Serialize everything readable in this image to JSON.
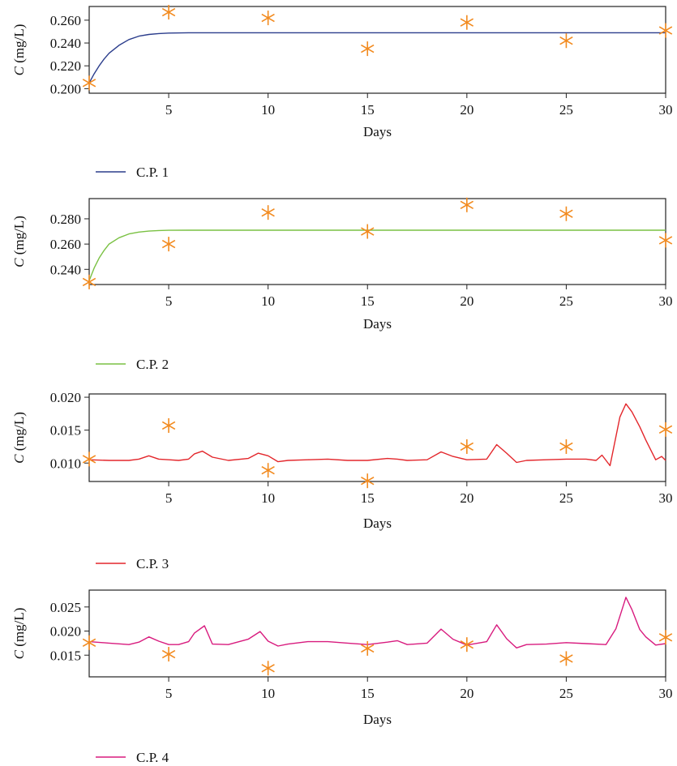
{
  "chart_data": [
    {
      "type": "line",
      "xlabel": "Days",
      "ylabel_italic": "C",
      "ylabel_unit": " (mg/L)",
      "xlim": [
        1,
        30
      ],
      "ylim": [
        0.196,
        0.272
      ],
      "xticks": [
        5,
        10,
        15,
        20,
        25,
        30
      ],
      "xtick_labels": [
        "5",
        "10",
        "15",
        "20",
        "25",
        "30"
      ],
      "yticks": [
        0.2,
        0.22,
        0.24,
        0.26
      ],
      "ytick_labels": [
        "0.200",
        "0.220",
        "0.240",
        "0.260"
      ],
      "grid": false,
      "legend_position": "below",
      "series": [
        {
          "name": "C.P. 1",
          "kind": "line",
          "color": "#2b3d8c",
          "x": [
            1,
            1.25,
            1.5,
            1.75,
            2,
            2.5,
            3,
            3.5,
            4,
            4.5,
            5,
            6,
            8,
            10,
            15,
            20,
            25,
            30
          ],
          "y": [
            0.205,
            0.213,
            0.22,
            0.226,
            0.231,
            0.238,
            0.243,
            0.246,
            0.2475,
            0.2483,
            0.2487,
            0.249,
            0.249,
            0.249,
            0.249,
            0.249,
            0.249,
            0.249
          ]
        },
        {
          "kind": "scatter",
          "marker": "asterisk",
          "color": "#f28a1e",
          "x": [
            1,
            5,
            10,
            15,
            20,
            25,
            30
          ],
          "y": [
            0.205,
            0.267,
            0.262,
            0.235,
            0.258,
            0.242,
            0.251
          ]
        }
      ]
    },
    {
      "type": "line",
      "xlabel": "Days",
      "ylabel_italic": "C",
      "ylabel_unit": " (mg/L)",
      "xlim": [
        1,
        30
      ],
      "ylim": [
        0.228,
        0.296
      ],
      "xticks": [
        5,
        10,
        15,
        20,
        25,
        30
      ],
      "xtick_labels": [
        "5",
        "10",
        "15",
        "20",
        "25",
        "30"
      ],
      "yticks": [
        0.24,
        0.26,
        0.28
      ],
      "ytick_labels": [
        "0.240",
        "0.260",
        "0.280"
      ],
      "grid": false,
      "legend_position": "below",
      "series": [
        {
          "name": "C.P. 2",
          "kind": "line",
          "color": "#7ac143",
          "x": [
            1,
            1.25,
            1.5,
            1.75,
            2,
            2.5,
            3,
            3.5,
            4,
            4.5,
            5,
            6,
            8,
            10,
            15,
            20,
            25,
            30
          ],
          "y": [
            0.231,
            0.241,
            0.249,
            0.255,
            0.26,
            0.265,
            0.268,
            0.2695,
            0.2703,
            0.2707,
            0.2709,
            0.271,
            0.271,
            0.271,
            0.271,
            0.271,
            0.271,
            0.271
          ]
        },
        {
          "kind": "scatter",
          "marker": "asterisk",
          "color": "#f28a1e",
          "x": [
            1,
            5,
            10,
            15,
            20,
            25,
            30
          ],
          "y": [
            0.23,
            0.26,
            0.285,
            0.27,
            0.291,
            0.284,
            0.263
          ]
        }
      ]
    },
    {
      "type": "line",
      "xlabel": "Days",
      "ylabel_italic": "C",
      "ylabel_unit": " (mg/L)",
      "xlim": [
        1,
        30
      ],
      "ylim": [
        0.0072,
        0.0205
      ],
      "xticks": [
        5,
        10,
        15,
        20,
        25,
        30
      ],
      "xtick_labels": [
        "5",
        "10",
        "15",
        "20",
        "25",
        "30"
      ],
      "yticks": [
        0.01,
        0.015,
        0.02
      ],
      "ytick_labels": [
        "0.010",
        "0.015",
        "0.020"
      ],
      "grid": false,
      "legend_position": "below",
      "series": [
        {
          "name": "C.P. 3",
          "kind": "line",
          "color": "#e3262b",
          "x": [
            1,
            2,
            3,
            3.5,
            4,
            4.5,
            5,
            5.5,
            6,
            6.3,
            6.7,
            7.2,
            8,
            9,
            9.5,
            10,
            10.5,
            11,
            12,
            13,
            14,
            15,
            16,
            16.5,
            17,
            18,
            18.7,
            19.3,
            20,
            21,
            21.5,
            22,
            22.5,
            23,
            24,
            25,
            26,
            26.5,
            26.8,
            27.2,
            27.7,
            28,
            28.3,
            28.7,
            29,
            29.5,
            29.8,
            30
          ],
          "y": [
            0.0105,
            0.0104,
            0.0104,
            0.0106,
            0.0111,
            0.0106,
            0.0105,
            0.0104,
            0.0106,
            0.0114,
            0.0118,
            0.0109,
            0.0104,
            0.0107,
            0.0115,
            0.0111,
            0.0102,
            0.0104,
            0.0105,
            0.0106,
            0.0104,
            0.0104,
            0.0107,
            0.0106,
            0.0104,
            0.0105,
            0.0117,
            0.011,
            0.0105,
            0.0106,
            0.0128,
            0.0115,
            0.0101,
            0.0104,
            0.0105,
            0.0106,
            0.0106,
            0.0104,
            0.0112,
            0.0096,
            0.017,
            0.019,
            0.0178,
            0.0155,
            0.0135,
            0.0105,
            0.011,
            0.0104
          ]
        },
        {
          "kind": "scatter",
          "marker": "asterisk",
          "color": "#f28a1e",
          "x": [
            1,
            5,
            10,
            15,
            20,
            25,
            30
          ],
          "y": [
            0.0106,
            0.0157,
            0.0089,
            0.0073,
            0.0125,
            0.0125,
            0.0151
          ]
        }
      ]
    },
    {
      "type": "line",
      "xlabel": "Days",
      "ylabel_italic": "C",
      "ylabel_unit": " (mg/L)",
      "xlim": [
        1,
        30
      ],
      "ylim": [
        0.0105,
        0.0285
      ],
      "xticks": [
        5,
        10,
        15,
        20,
        25,
        30
      ],
      "xtick_labels": [
        "5",
        "10",
        "15",
        "20",
        "25",
        "30"
      ],
      "yticks": [
        0.015,
        0.02,
        0.025
      ],
      "ytick_labels": [
        "0.015",
        "0.020",
        "0.025"
      ],
      "grid": false,
      "legend_position": "below",
      "series": [
        {
          "name": "C.P. 4",
          "kind": "line",
          "color": "#d81b7e",
          "x": [
            1,
            2,
            3,
            3.5,
            4,
            4.5,
            5,
            5.5,
            6,
            6.3,
            6.8,
            7.2,
            8,
            9,
            9.6,
            10,
            10.5,
            11,
            12,
            13,
            14,
            15,
            16,
            16.5,
            17,
            18,
            18.7,
            19.3,
            20,
            21,
            21.5,
            22,
            22.5,
            23,
            24,
            25,
            26,
            27,
            27.5,
            28,
            28.3,
            28.7,
            29,
            29.5,
            30
          ],
          "y": [
            0.0178,
            0.0175,
            0.0172,
            0.0177,
            0.0188,
            0.0179,
            0.0172,
            0.0172,
            0.0178,
            0.0196,
            0.0211,
            0.0173,
            0.0172,
            0.0183,
            0.0199,
            0.0179,
            0.0169,
            0.0173,
            0.0178,
            0.0178,
            0.0175,
            0.0172,
            0.0177,
            0.018,
            0.0172,
            0.0175,
            0.0204,
            0.0183,
            0.0171,
            0.0178,
            0.0213,
            0.0184,
            0.0165,
            0.0172,
            0.0173,
            0.0176,
            0.0174,
            0.0172,
            0.0205,
            0.027,
            0.0245,
            0.0203,
            0.0188,
            0.0171,
            0.0174
          ]
        },
        {
          "kind": "scatter",
          "marker": "asterisk",
          "color": "#f28a1e",
          "x": [
            1,
            5,
            10,
            15,
            20,
            25,
            30
          ],
          "y": [
            0.0176,
            0.0152,
            0.0123,
            0.0164,
            0.0172,
            0.0143,
            0.0187
          ]
        }
      ]
    }
  ]
}
